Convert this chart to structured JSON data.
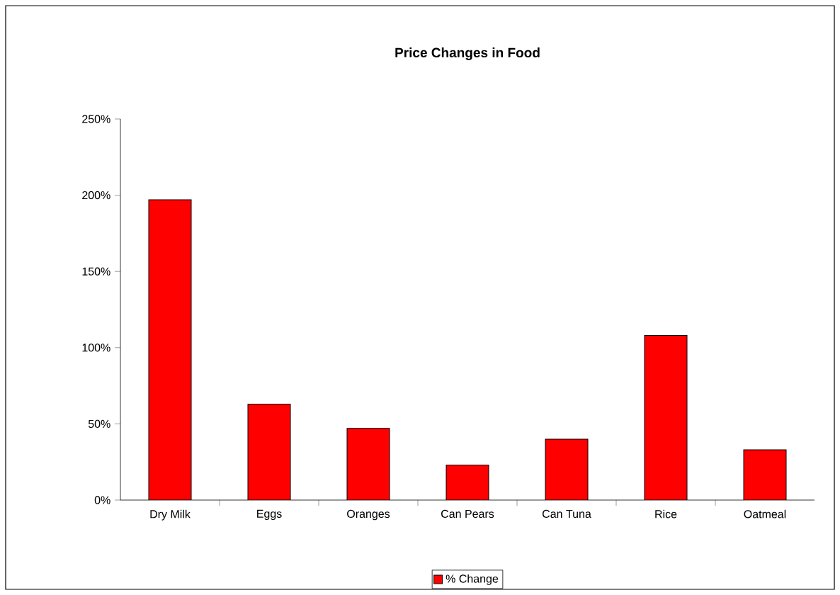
{
  "chart_data": {
    "type": "bar",
    "title": "Price Changes in Food",
    "categories": [
      "Dry Milk",
      "Eggs",
      "Oranges",
      "Can Pears",
      "Can Tuna",
      "Rice",
      "Oatmeal"
    ],
    "series": [
      {
        "name": "% Change",
        "color": "#ff0000",
        "values": [
          197,
          63,
          47,
          23,
          40,
          108,
          33
        ]
      }
    ],
    "ylim": [
      0,
      250
    ],
    "yticks": [
      {
        "value": 0,
        "label": "0%"
      },
      {
        "value": 50,
        "label": "50%"
      },
      {
        "value": 100,
        "label": "100%"
      },
      {
        "value": 150,
        "label": "150%"
      },
      {
        "value": 200,
        "label": "200%"
      },
      {
        "value": 250,
        "label": "250%"
      }
    ],
    "legend": "bottom"
  }
}
